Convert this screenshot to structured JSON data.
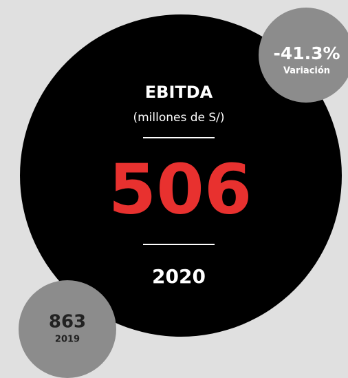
{
  "main": {
    "title": "EBITDA",
    "unit": "(millones de S/)",
    "value": "506",
    "year": "2020"
  },
  "variation": {
    "value": "-41.3%",
    "label": "Variación"
  },
  "previous": {
    "value": "863",
    "year": "2019"
  }
}
